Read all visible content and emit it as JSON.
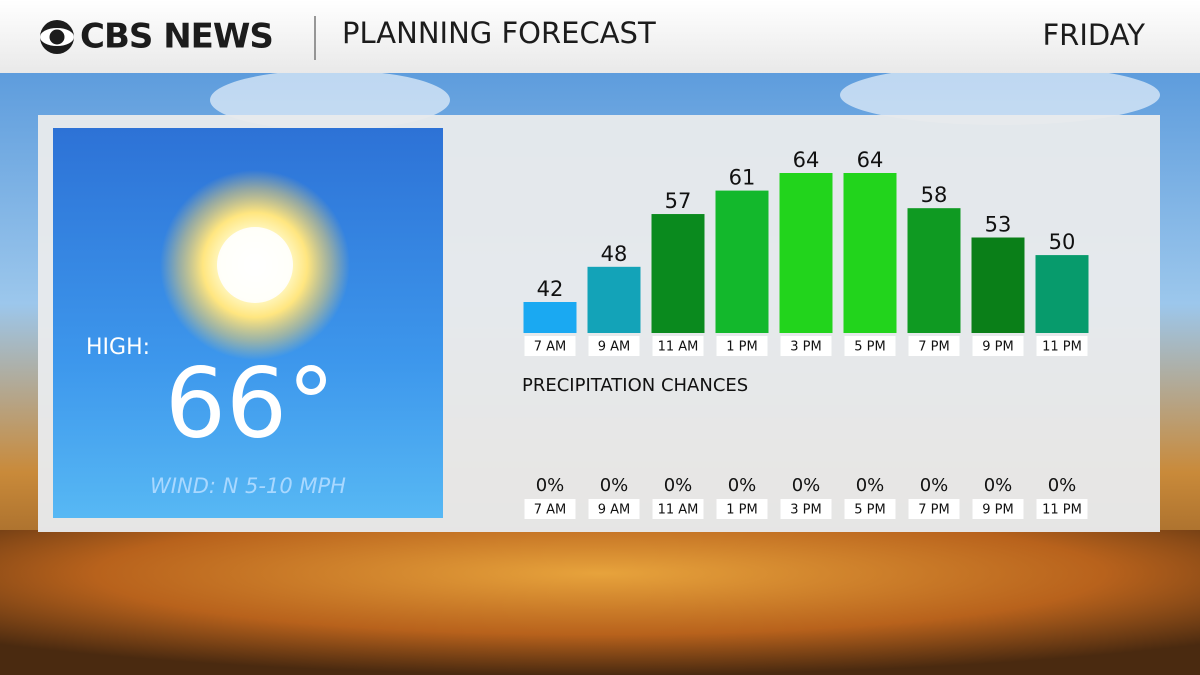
{
  "header": {
    "network": "CBS NEWS",
    "title": "PLANNING FORECAST",
    "day": "FRIDAY"
  },
  "high_card": {
    "label": "HIGH:",
    "temperature": "66°",
    "wind": "WIND: N 5-10 MPH"
  },
  "chart_data": [
    {
      "type": "bar",
      "categories": [
        "7 AM",
        "9 AM",
        "11 AM",
        "1 PM",
        "3 PM",
        "5 PM",
        "7 PM",
        "9 PM",
        "11 PM"
      ],
      "values": [
        42,
        48,
        57,
        61,
        64,
        64,
        58,
        53,
        50
      ],
      "colors": [
        "#1aa9f2",
        "#13a3b8",
        "#0a8a1e",
        "#13b82c",
        "#22d41c",
        "#22d41c",
        "#0f9a22",
        "#0a7f18",
        "#079b6c"
      ]
    },
    {
      "type": "bar",
      "title": "PRECIPITATION CHANCES",
      "categories": [
        "7 AM",
        "9 AM",
        "11 AM",
        "1 PM",
        "3 PM",
        "5 PM",
        "7 PM",
        "9 PM",
        "11 PM"
      ],
      "values": [
        0,
        0,
        0,
        0,
        0,
        0,
        0,
        0,
        0
      ],
      "value_labels": [
        "0%",
        "0%",
        "0%",
        "0%",
        "0%",
        "0%",
        "0%",
        "0%",
        "0%"
      ],
      "colors": [
        "#1aa9f2",
        "#1aa9f2",
        "#1aa9f2",
        "#1aa9f2",
        "#1aa9f2",
        "#1aa9f2",
        "#1aa9f2",
        "#1aa9f2",
        "#1aa9f2"
      ]
    }
  ]
}
